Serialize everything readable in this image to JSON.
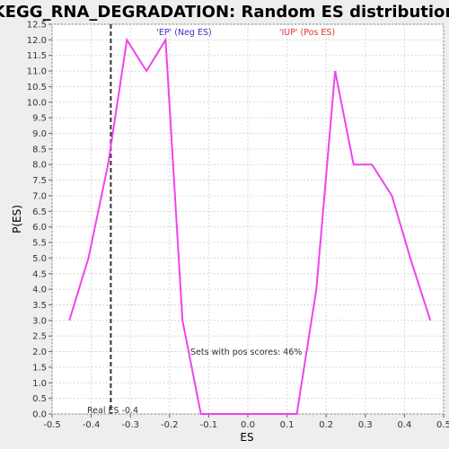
{
  "chart_data": {
    "type": "line",
    "title": "KEGG_RNA_DEGRADATION: Random ES distribution",
    "xlabel": "ES",
    "ylabel": "P(ES)",
    "xlim": [
      -0.5,
      0.5
    ],
    "ylim": [
      0.0,
      12.5
    ],
    "x_ticks": [
      "-0.5",
      "-0.4",
      "-0.3",
      "-0.2",
      "-0.1",
      "0.0",
      "0.1",
      "0.2",
      "0.3",
      "0.4",
      "0.5"
    ],
    "y_ticks": [
      "0.0",
      "0.5",
      "1.0",
      "1.5",
      "2.0",
      "2.5",
      "3.0",
      "3.5",
      "4.0",
      "4.5",
      "5.0",
      "5.5",
      "6.0",
      "6.5",
      "7.0",
      "7.5",
      "8.0",
      "8.5",
      "9.0",
      "9.5",
      "10.0",
      "10.5",
      "11.0",
      "11.5",
      "12.0",
      "12.5"
    ],
    "grid": true,
    "series": [
      {
        "color": "#ee44ee",
        "x": [
          -0.456,
          -0.407,
          -0.357,
          -0.309,
          -0.259,
          -0.21,
          -0.167,
          -0.12,
          -0.07,
          0.0,
          0.07,
          0.125,
          0.175,
          0.223,
          0.27,
          0.317,
          0.368,
          0.415,
          0.466
        ],
        "y": [
          3.0,
          5.0,
          8.0,
          12.0,
          11.0,
          12.0,
          3.0,
          0.0,
          0.0,
          0.0,
          0.0,
          0.0,
          4.0,
          11.0,
          8.0,
          8.0,
          7.0,
          5.0,
          3.0
        ]
      }
    ],
    "real_es": {
      "x": -0.35,
      "label": "Real ES -0.4",
      "color": "#333333"
    },
    "annotations": {
      "neg_label": "'EP' (Neg ES)",
      "neg_color": "#3333cc",
      "pos_label": "'IUP' (Pos ES)",
      "pos_color": "#dd3333",
      "pos_scores": "Sets with pos scores: 46%"
    },
    "colors": {
      "background": "#eeeeee",
      "plot_background": "#ffffff",
      "grid": "#d8d8d8"
    }
  }
}
